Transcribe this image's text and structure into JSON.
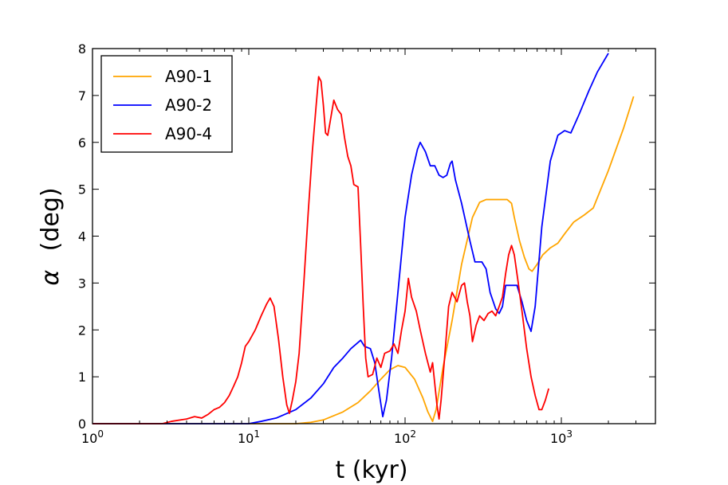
{
  "chart_data": {
    "type": "line",
    "title": "",
    "xlabel": "t (kyr)",
    "ylabel_symbol": "α",
    "ylabel_unit": "(deg)",
    "xscale": "log",
    "xlim": [
      1,
      4000
    ],
    "ylim": [
      0,
      8
    ],
    "xticks": [
      {
        "value": 1,
        "base": "10",
        "exp": "0"
      },
      {
        "value": 10,
        "base": "10",
        "exp": "1"
      },
      {
        "value": 100,
        "base": "10",
        "exp": "2"
      },
      {
        "value": 1000,
        "base": "10",
        "exp": "3"
      }
    ],
    "yticks": [
      0,
      1,
      2,
      3,
      4,
      5,
      6,
      7,
      8
    ],
    "grid": false,
    "legend_position": "top-left",
    "series": [
      {
        "name": "A90-1",
        "color": "#FFA500",
        "points": [
          [
            1,
            0
          ],
          [
            20,
            0
          ],
          [
            25,
            0.03
          ],
          [
            30,
            0.08
          ],
          [
            40,
            0.25
          ],
          [
            50,
            0.45
          ],
          [
            60,
            0.7
          ],
          [
            70,
            0.95
          ],
          [
            80,
            1.15
          ],
          [
            90,
            1.24
          ],
          [
            100,
            1.2
          ],
          [
            115,
            0.95
          ],
          [
            130,
            0.55
          ],
          [
            140,
            0.25
          ],
          [
            150,
            0.05
          ],
          [
            158,
            0.3
          ],
          [
            175,
            1.2
          ],
          [
            200,
            2.2
          ],
          [
            230,
            3.4
          ],
          [
            270,
            4.4
          ],
          [
            300,
            4.72
          ],
          [
            330,
            4.78
          ],
          [
            400,
            4.78
          ],
          [
            450,
            4.78
          ],
          [
            480,
            4.7
          ],
          [
            500,
            4.4
          ],
          [
            540,
            3.9
          ],
          [
            580,
            3.55
          ],
          [
            620,
            3.3
          ],
          [
            650,
            3.25
          ],
          [
            700,
            3.4
          ],
          [
            760,
            3.6
          ],
          [
            850,
            3.75
          ],
          [
            950,
            3.85
          ],
          [
            1050,
            4.05
          ],
          [
            1200,
            4.3
          ],
          [
            1400,
            4.45
          ],
          [
            1600,
            4.6
          ],
          [
            2000,
            5.4
          ],
          [
            2500,
            6.3
          ],
          [
            2900,
            6.98
          ]
        ]
      },
      {
        "name": "A90-2",
        "color": "#0000FF",
        "points": [
          [
            1,
            0
          ],
          [
            10,
            0
          ],
          [
            12,
            0.05
          ],
          [
            15,
            0.12
          ],
          [
            20,
            0.3
          ],
          [
            25,
            0.55
          ],
          [
            30,
            0.85
          ],
          [
            35,
            1.2
          ],
          [
            40,
            1.4
          ],
          [
            45,
            1.6
          ],
          [
            48,
            1.68
          ],
          [
            52,
            1.78
          ],
          [
            55,
            1.65
          ],
          [
            60,
            1.6
          ],
          [
            64,
            1.3
          ],
          [
            68,
            0.7
          ],
          [
            72,
            0.15
          ],
          [
            76,
            0.5
          ],
          [
            82,
            1.4
          ],
          [
            90,
            2.8
          ],
          [
            100,
            4.4
          ],
          [
            110,
            5.3
          ],
          [
            120,
            5.85
          ],
          [
            125,
            6.0
          ],
          [
            135,
            5.8
          ],
          [
            145,
            5.5
          ],
          [
            155,
            5.5
          ],
          [
            165,
            5.3
          ],
          [
            175,
            5.25
          ],
          [
            185,
            5.3
          ],
          [
            195,
            5.55
          ],
          [
            200,
            5.6
          ],
          [
            210,
            5.2
          ],
          [
            230,
            4.7
          ],
          [
            260,
            3.9
          ],
          [
            280,
            3.45
          ],
          [
            310,
            3.45
          ],
          [
            330,
            3.3
          ],
          [
            350,
            2.8
          ],
          [
            380,
            2.45
          ],
          [
            400,
            2.35
          ],
          [
            420,
            2.5
          ],
          [
            440,
            2.95
          ],
          [
            470,
            2.95
          ],
          [
            520,
            2.95
          ],
          [
            560,
            2.6
          ],
          [
            600,
            2.2
          ],
          [
            640,
            1.97
          ],
          [
            680,
            2.5
          ],
          [
            750,
            4.2
          ],
          [
            850,
            5.6
          ],
          [
            950,
            6.15
          ],
          [
            1050,
            6.25
          ],
          [
            1150,
            6.2
          ],
          [
            1300,
            6.6
          ],
          [
            1500,
            7.1
          ],
          [
            1700,
            7.5
          ],
          [
            2000,
            7.9
          ]
        ]
      },
      {
        "name": "A90-4",
        "color": "#FF0000",
        "points": [
          [
            1,
            0
          ],
          [
            2.8,
            0
          ],
          [
            3.2,
            0.05
          ],
          [
            4,
            0.1
          ],
          [
            4.5,
            0.15
          ],
          [
            5,
            0.12
          ],
          [
            5.5,
            0.2
          ],
          [
            6,
            0.3
          ],
          [
            6.5,
            0.35
          ],
          [
            7,
            0.45
          ],
          [
            7.5,
            0.6
          ],
          [
            8,
            0.8
          ],
          [
            8.5,
            1.0
          ],
          [
            9,
            1.3
          ],
          [
            9.5,
            1.65
          ],
          [
            10,
            1.75
          ],
          [
            11,
            2.0
          ],
          [
            12,
            2.3
          ],
          [
            13,
            2.55
          ],
          [
            13.7,
            2.68
          ],
          [
            14.5,
            2.5
          ],
          [
            15.5,
            1.8
          ],
          [
            16.5,
            1.0
          ],
          [
            17.5,
            0.4
          ],
          [
            18.2,
            0.22
          ],
          [
            19,
            0.5
          ],
          [
            20,
            0.9
          ],
          [
            21,
            1.5
          ],
          [
            22.5,
            3.0
          ],
          [
            24,
            4.5
          ],
          [
            25.5,
            5.8
          ],
          [
            27,
            6.8
          ],
          [
            28,
            7.4
          ],
          [
            29,
            7.3
          ],
          [
            30,
            6.8
          ],
          [
            31,
            6.2
          ],
          [
            32,
            6.15
          ],
          [
            33,
            6.4
          ],
          [
            35,
            6.9
          ],
          [
            37,
            6.7
          ],
          [
            39,
            6.6
          ],
          [
            41,
            6.1
          ],
          [
            43,
            5.7
          ],
          [
            45,
            5.5
          ],
          [
            47,
            5.1
          ],
          [
            50,
            5.05
          ],
          [
            52,
            3.8
          ],
          [
            54,
            2.5
          ],
          [
            56,
            1.4
          ],
          [
            58,
            1.0
          ],
          [
            62,
            1.05
          ],
          [
            66,
            1.4
          ],
          [
            70,
            1.2
          ],
          [
            74,
            1.5
          ],
          [
            80,
            1.55
          ],
          [
            85,
            1.7
          ],
          [
            90,
            1.5
          ],
          [
            95,
            2.0
          ],
          [
            100,
            2.4
          ],
          [
            105,
            3.1
          ],
          [
            110,
            2.7
          ],
          [
            118,
            2.4
          ],
          [
            125,
            2.0
          ],
          [
            135,
            1.5
          ],
          [
            145,
            1.1
          ],
          [
            150,
            1.3
          ],
          [
            160,
            0.4
          ],
          [
            165,
            0.1
          ],
          [
            170,
            0.5
          ],
          [
            180,
            1.5
          ],
          [
            190,
            2.5
          ],
          [
            200,
            2.8
          ],
          [
            215,
            2.6
          ],
          [
            230,
            2.95
          ],
          [
            240,
            3.0
          ],
          [
            250,
            2.6
          ],
          [
            260,
            2.3
          ],
          [
            270,
            1.75
          ],
          [
            285,
            2.1
          ],
          [
            300,
            2.3
          ],
          [
            320,
            2.2
          ],
          [
            340,
            2.35
          ],
          [
            360,
            2.4
          ],
          [
            380,
            2.3
          ],
          [
            400,
            2.5
          ],
          [
            420,
            2.7
          ],
          [
            440,
            3.2
          ],
          [
            460,
            3.6
          ],
          [
            480,
            3.8
          ],
          [
            500,
            3.6
          ],
          [
            530,
            3.0
          ],
          [
            560,
            2.4
          ],
          [
            600,
            1.6
          ],
          [
            640,
            1.0
          ],
          [
            680,
            0.6
          ],
          [
            720,
            0.3
          ],
          [
            750,
            0.3
          ],
          [
            790,
            0.5
          ],
          [
            830,
            0.75
          ]
        ]
      }
    ]
  }
}
